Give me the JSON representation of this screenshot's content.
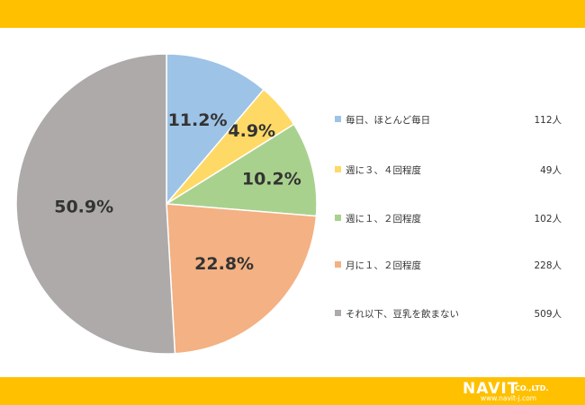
{
  "chart_data": {
    "type": "pie",
    "slices": [
      {
        "label": "毎日、ほとんど毎日",
        "value": 11.2,
        "count": "112人",
        "display": "11.2%",
        "color": "#9dc3e6"
      },
      {
        "label": "週に３、４回程度",
        "value": 4.9,
        "count": "49人",
        "display": "4.9%",
        "color": "#ffd966"
      },
      {
        "label": "週に１、２回程度",
        "value": 10.2,
        "count": "102人",
        "display": "10.2%",
        "color": "#a9d18e"
      },
      {
        "label": "月に１、２回程度",
        "value": 22.8,
        "count": "228人",
        "display": "22.8%",
        "color": "#f4b183"
      },
      {
        "label": "それ以下、豆乳を飲まない",
        "value": 50.9,
        "count": "509人",
        "display": "50.9%",
        "color": "#aeaaaa"
      }
    ],
    "start": "12 o'clock",
    "direction": "clockwise",
    "legend_position": "right"
  },
  "colors": {
    "band": "#ffc000",
    "text": "#333333"
  },
  "logo": {
    "main": "NAVIT",
    "co": "CO.,LTD.",
    "url": "www.navit-j.com"
  }
}
